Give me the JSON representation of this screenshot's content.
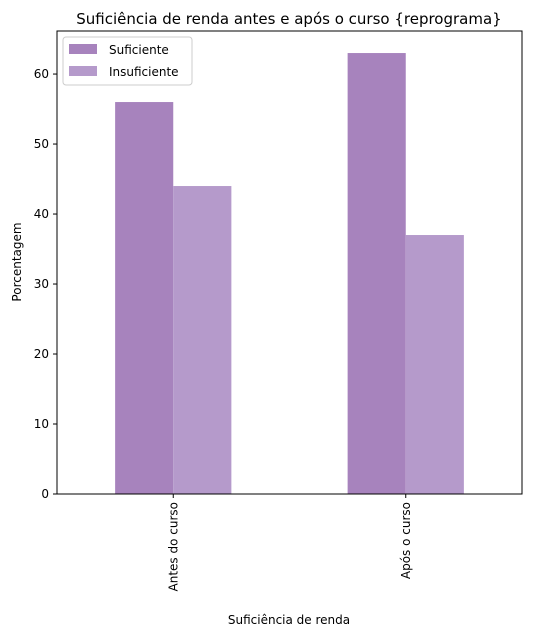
{
  "chart_data": {
    "type": "bar",
    "title": "Suficiência de renda antes e após o curso {reprograma}",
    "xlabel": "Suficiência de renda",
    "ylabel": "Porcentagem",
    "categories": [
      "Antes do curso",
      "Após o curso"
    ],
    "series": [
      {
        "name": "Suficiente",
        "values": [
          56,
          63
        ],
        "color": "#a783bd"
      },
      {
        "name": "Insuficiente",
        "values": [
          44,
          37
        ],
        "color": "#b59acb"
      }
    ],
    "ylim": [
      0,
      66.15
    ],
    "yticks": [
      0,
      10,
      20,
      30,
      40,
      50,
      60
    ],
    "grid": false,
    "legend_position": "top-left"
  }
}
